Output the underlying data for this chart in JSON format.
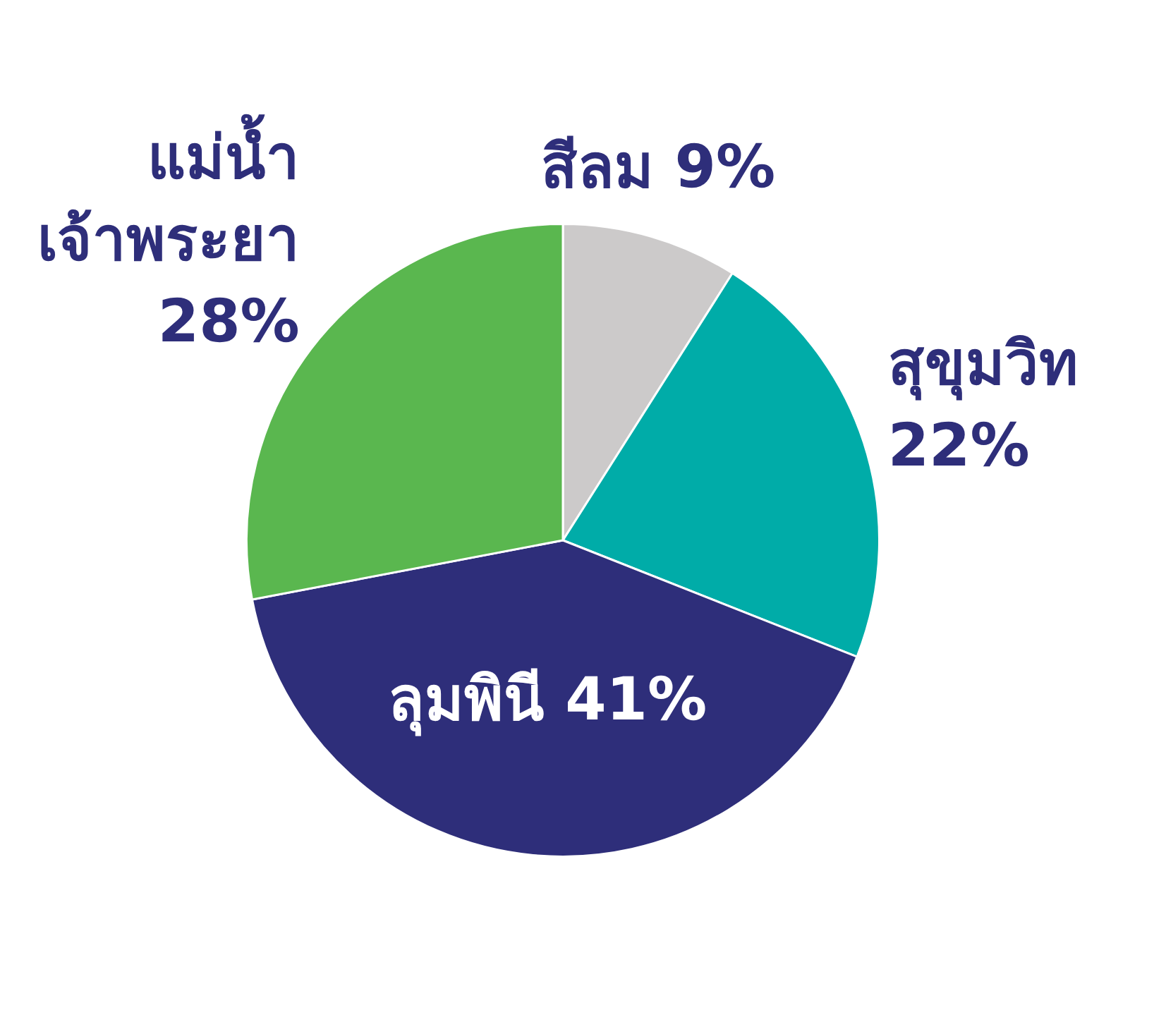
{
  "chart_data": {
    "type": "pie",
    "categories": [
      "สีลม",
      "สุขุมวิท",
      "ลุมพินี",
      "แม่น้ำเจ้าพระยา"
    ],
    "values": [
      9,
      22,
      41,
      28
    ],
    "value_labels": [
      "9%",
      "22%",
      "41%",
      "28%"
    ],
    "colors": [
      "#cccaca",
      "#00aca8",
      "#2e2e7a",
      "#5ab74f"
    ],
    "legend": false
  }
}
